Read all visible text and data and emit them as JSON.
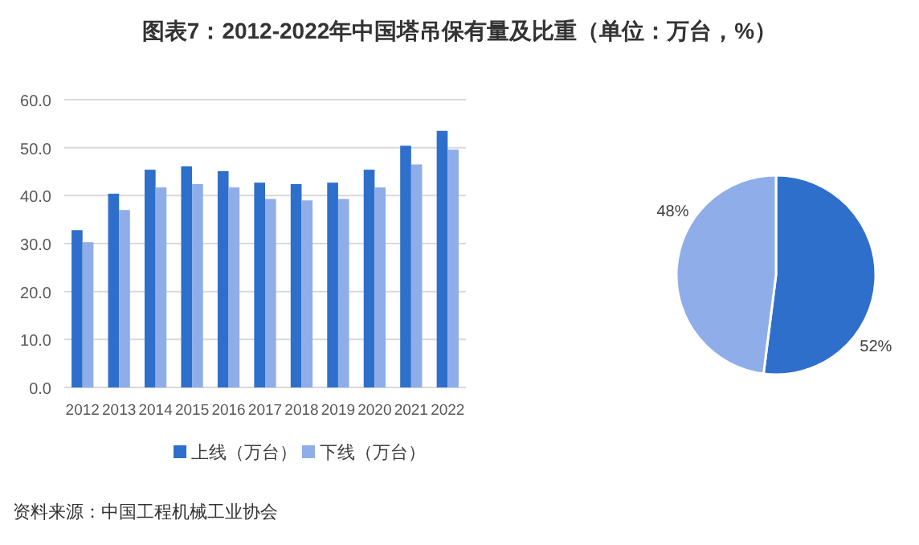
{
  "chart_data": [
    {
      "type": "bar",
      "title": "图表7：2012-2022年中国塔吊保有量及比重（单位：万台，%）",
      "categories": [
        "2012",
        "2013",
        "2014",
        "2015",
        "2016",
        "2017",
        "2018",
        "2019",
        "2020",
        "2021",
        "2022"
      ],
      "series": [
        {
          "name": "上线（万台）",
          "color": "#2e6fcc",
          "values": [
            32.8,
            40.4,
            45.4,
            46.1,
            45.1,
            42.7,
            42.4,
            42.7,
            45.4,
            50.4,
            53.5
          ]
        },
        {
          "name": "下线（万台）",
          "color": "#8fade9",
          "values": [
            30.3,
            37.0,
            41.7,
            42.4,
            41.7,
            39.3,
            39.0,
            39.3,
            41.7,
            46.5,
            49.6
          ]
        }
      ],
      "ylim": [
        0,
        60
      ],
      "yticks": [
        {
          "value": 0,
          "label": "0.0"
        },
        {
          "value": 10,
          "label": "10.0"
        },
        {
          "value": 20,
          "label": "20.0"
        },
        {
          "value": 30,
          "label": "30.0"
        },
        {
          "value": 40,
          "label": "40.0"
        },
        {
          "value": 50,
          "label": "50.0"
        },
        {
          "value": 60,
          "label": "60.0"
        }
      ],
      "grid": "y",
      "legend": "bottom",
      "annotations": [
        "资料来源：中国工程机械工业协会"
      ]
    },
    {
      "type": "pie",
      "categories": [
        null,
        null
      ],
      "values": [
        52,
        48
      ],
      "colors": [
        "#2e6fcc",
        "#8fade9"
      ],
      "value_labels": [
        "52%",
        "48%"
      ]
    }
  ]
}
